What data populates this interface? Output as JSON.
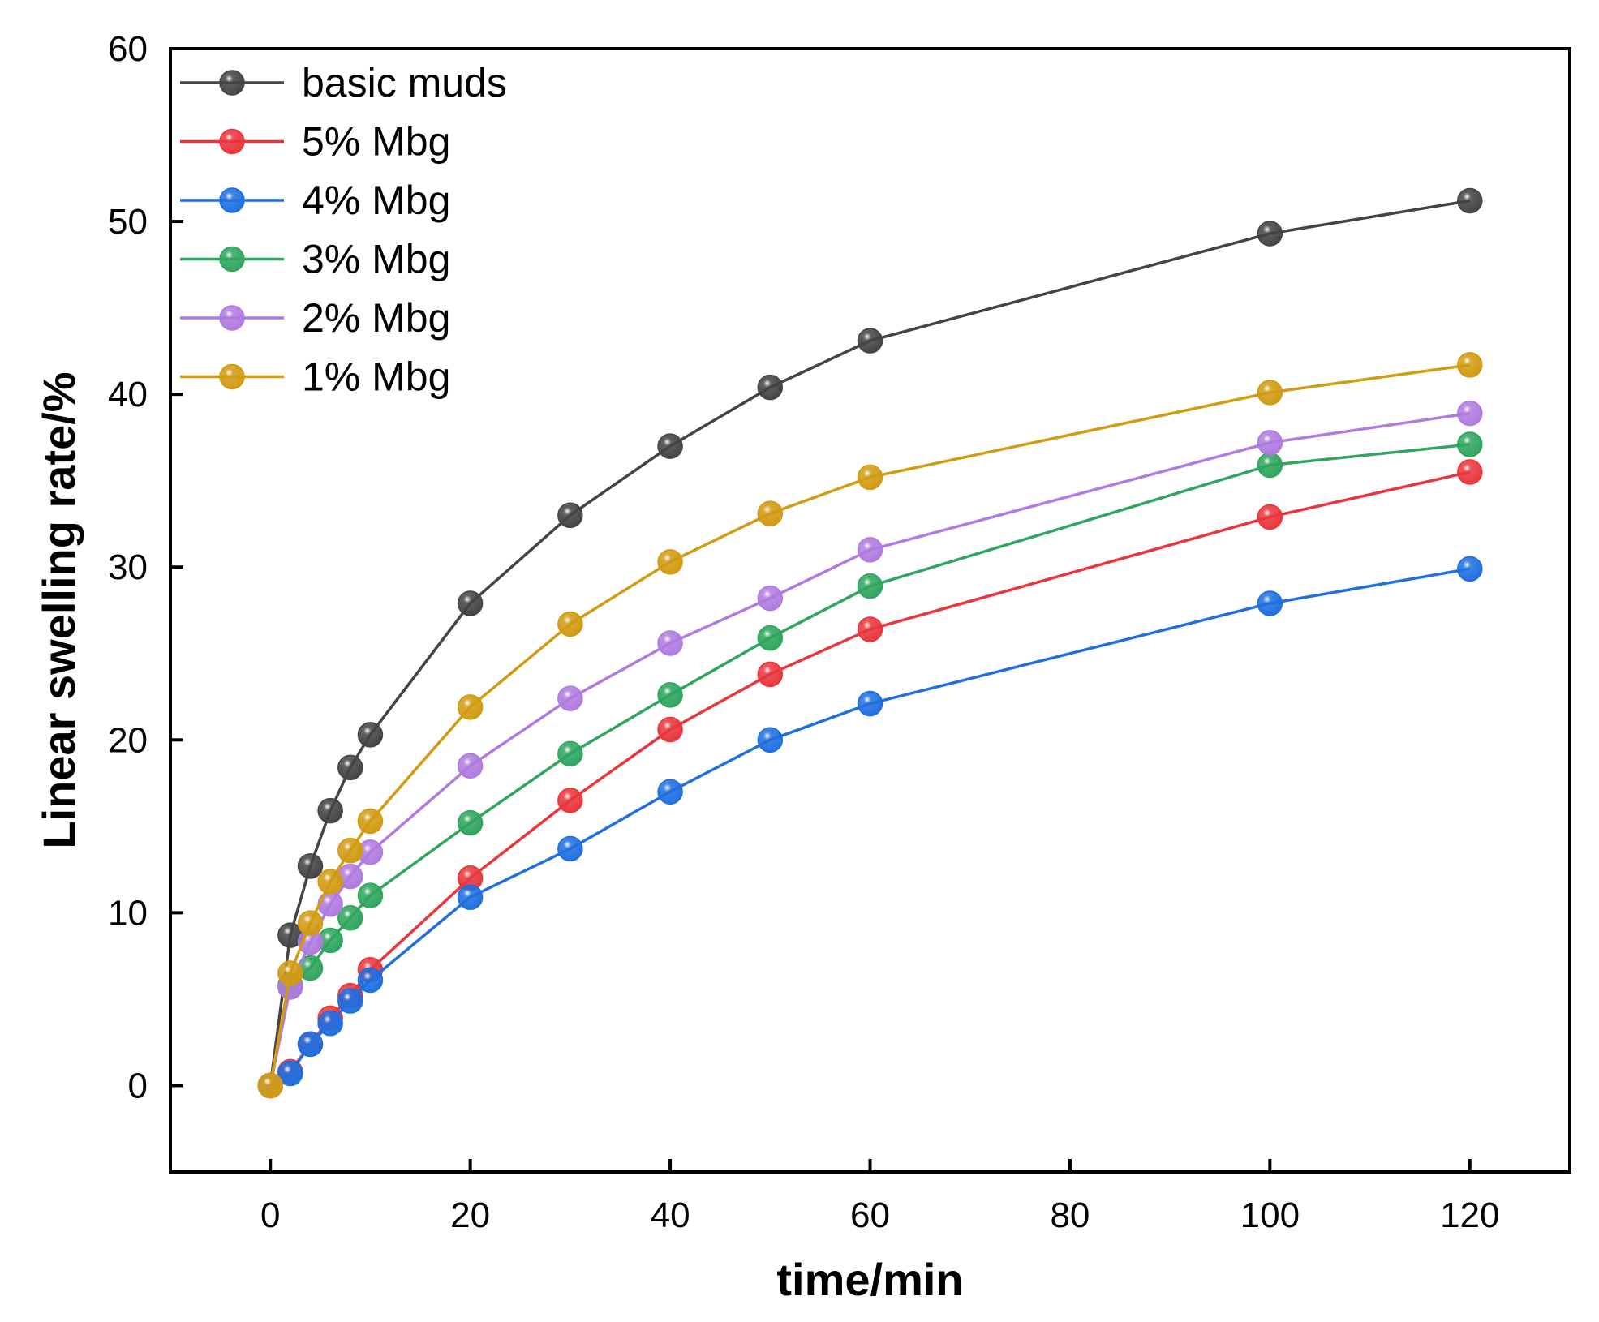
{
  "chart_data": {
    "type": "line",
    "title": "",
    "xlabel": "time/min",
    "ylabel": "Linear swelling rate/%",
    "xlim": [
      -10,
      130
    ],
    "ylim": [
      -5,
      60
    ],
    "xticks": [
      0,
      20,
      40,
      60,
      80,
      100,
      120
    ],
    "yticks": [
      0,
      10,
      20,
      30,
      40,
      50,
      60
    ],
    "grid": false,
    "legend_position": "top-left",
    "x": [
      0,
      2,
      4,
      6,
      8,
      10,
      20,
      30,
      40,
      50,
      60,
      100,
      120
    ],
    "series": [
      {
        "name": "basic muds",
        "color": "#444444",
        "values": [
          0,
          8.7,
          12.7,
          15.9,
          18.4,
          20.3,
          27.9,
          33.0,
          37.0,
          40.4,
          43.1,
          49.3,
          51.2
        ]
      },
      {
        "name": "5% Mbg",
        "color": "#e8363c",
        "values": [
          0,
          0.8,
          2.4,
          3.9,
          5.2,
          6.7,
          12.0,
          16.5,
          20.6,
          23.8,
          26.4,
          32.9,
          35.5
        ]
      },
      {
        "name": "4% Mbg",
        "color": "#1f6fe0",
        "values": [
          0,
          0.7,
          2.4,
          3.6,
          4.9,
          6.1,
          10.9,
          13.7,
          17.0,
          20.0,
          22.1,
          27.9,
          29.9
        ]
      },
      {
        "name": "3% Mbg",
        "color": "#2fa55e",
        "values": [
          0,
          5.8,
          6.8,
          8.4,
          9.7,
          11.0,
          15.2,
          19.2,
          22.6,
          25.9,
          28.9,
          35.9,
          37.1
        ]
      },
      {
        "name": "2% Mbg",
        "color": "#b07be0",
        "values": [
          0,
          5.7,
          8.3,
          10.5,
          12.1,
          13.5,
          18.5,
          22.4,
          25.6,
          28.2,
          31.0,
          37.2,
          38.9
        ]
      },
      {
        "name": "1% Mbg",
        "color": "#d19b12",
        "values": [
          0,
          6.5,
          9.4,
          11.8,
          13.6,
          15.3,
          21.9,
          26.7,
          30.3,
          33.1,
          35.2,
          40.1,
          41.7
        ]
      }
    ]
  }
}
